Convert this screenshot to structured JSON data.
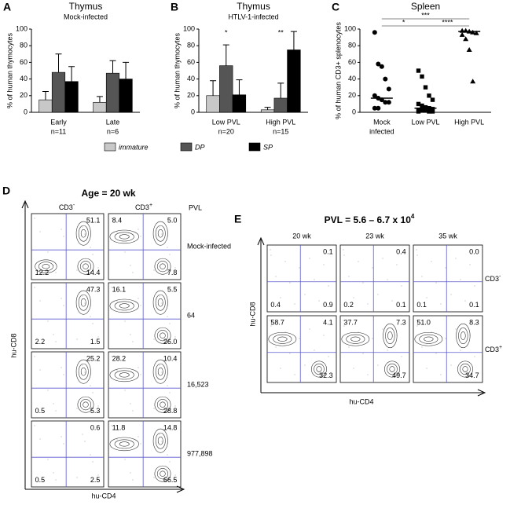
{
  "chart_data": [
    {
      "type": "bar",
      "panel": "A",
      "title": "Thymus",
      "subtitle": "Mock-infected",
      "ylabel": "% of human thymocytes",
      "categories": [
        "Early",
        "Late"
      ],
      "category_notes": [
        "n=11",
        "n=6"
      ],
      "series": [
        {
          "name": "immature",
          "color": "#c8c8c8",
          "values": [
            15,
            12
          ],
          "errors": [
            10,
            7
          ]
        },
        {
          "name": "DP",
          "color": "#555555",
          "values": [
            48,
            47
          ],
          "errors": [
            22,
            15
          ]
        },
        {
          "name": "SP",
          "color": "#000000",
          "values": [
            37,
            40
          ],
          "errors": [
            18,
            20
          ]
        }
      ],
      "ylim": [
        0,
        100
      ],
      "yticks": [
        0,
        20,
        40,
        60,
        80,
        100
      ]
    },
    {
      "type": "bar",
      "panel": "B",
      "title": "Thymus",
      "subtitle": "HTLV-1-infected",
      "ylabel": "% of human thymocytes",
      "categories": [
        "Low PVL",
        "High PVL"
      ],
      "category_notes": [
        "n=20",
        "n=15"
      ],
      "annotations": [
        "*",
        "**"
      ],
      "series": [
        {
          "color": "#c8c8c8",
          "values": [
            20,
            3
          ],
          "errors": [
            18,
            3
          ]
        },
        {
          "color": "#555555",
          "values": [
            56,
            17
          ],
          "errors": [
            25,
            18
          ]
        },
        {
          "color": "#000000",
          "values": [
            21,
            75
          ],
          "errors": [
            18,
            22
          ]
        }
      ],
      "ylim": [
        0,
        100
      ],
      "yticks": [
        0,
        20,
        40,
        60,
        80,
        100
      ]
    },
    {
      "type": "strip",
      "panel": "C",
      "title": "Spleen",
      "ylabel": "% of human CD3+ splenocytes",
      "categories": [
        "Mock",
        "Low PVL",
        "High PVL"
      ],
      "category_notes": [
        "infected",
        null,
        null
      ],
      "points": [
        [
          96,
          58,
          55,
          40,
          28,
          20,
          17,
          15,
          12,
          12,
          5,
          5
        ],
        [
          50,
          43,
          30,
          20,
          15,
          10,
          8,
          6,
          5,
          4,
          3,
          2,
          2,
          1,
          1,
          1
        ],
        [
          98,
          98,
          97,
          96,
          95,
          93,
          88,
          75,
          37
        ]
      ],
      "medians": [
        17,
        5,
        97
      ],
      "markers": [
        "circle",
        "square",
        "triangle"
      ],
      "significance": [
        "*",
        "****",
        "***"
      ],
      "ylim": [
        0,
        100
      ],
      "yticks": [
        0,
        20,
        40,
        60,
        80,
        100
      ]
    }
  ],
  "figure_d": {
    "panel": "D",
    "title": "Age = 20 wk",
    "columns": [
      {
        "text": "CD3",
        "sup": "-"
      },
      {
        "text": "CD3",
        "sup": "+"
      }
    ],
    "row_header": "PVL",
    "rows": [
      "Mock-infected",
      "64",
      "16,523",
      "977,898"
    ],
    "ylabel": "hu-CD8",
    "xlabel": "hu-CD4",
    "plots": [
      [
        {
          "ur": "51.1",
          "ll": "12.2",
          "lr": "14.4"
        },
        {
          "ul": "8.4",
          "ur": "5.0",
          "lr": "7.8"
        }
      ],
      [
        {
          "ur": "47.3",
          "ll": "2.2",
          "lr": "1.5"
        },
        {
          "ul": "16.1",
          "ur": "5.5",
          "lr": "26.0"
        }
      ],
      [
        {
          "ur": "25.2",
          "ll": "0.5",
          "lr": "5.3"
        },
        {
          "ul": "28.2",
          "ur": "10.4",
          "lr": "28.8"
        }
      ],
      [
        {
          "ur": "0.6",
          "ll": "0.5",
          "lr": "2.5"
        },
        {
          "ul": "11.8",
          "ur": "14.8",
          "lr": "66.5"
        }
      ]
    ]
  },
  "figure_e": {
    "panel": "E",
    "title": "PVL = 5.6 – 6.7 x 10",
    "title_sup": "4",
    "columns": [
      "20 wk",
      "23 wk",
      "35 wk"
    ],
    "rows": [
      {
        "text": "CD3",
        "sup": "-"
      },
      {
        "text": "CD3",
        "sup": "+"
      }
    ],
    "ylabel": "hu-CD8",
    "xlabel": "hu-CD4",
    "plots": [
      [
        {
          "ur": "0.1",
          "ll": "0.4",
          "lr": "0.9"
        },
        {
          "ur": "0.4",
          "ll": "0.2",
          "lr": "0.1"
        },
        {
          "ur": "0.0",
          "ll": "0.1",
          "lr": "0.1"
        }
      ],
      [
        {
          "ul": "58.7",
          "ur": "4.1",
          "lr": "32.3"
        },
        {
          "ul": "37.7",
          "ur": "7.3",
          "lr": "49.7"
        },
        {
          "ul": "51.0",
          "ur": "8.3",
          "lr": "34.7"
        }
      ]
    ]
  }
}
